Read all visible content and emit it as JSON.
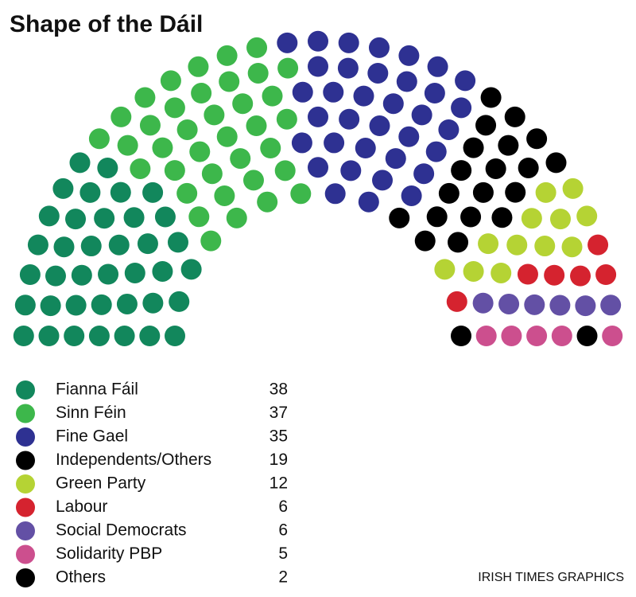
{
  "chart_data": {
    "type": "parliament",
    "title": "Shape of the Dáil",
    "series": [
      {
        "name": "Fianna Fáil",
        "color": "#12875c",
        "value": 38
      },
      {
        "name": "Sinn Féin",
        "color": "#3db74b",
        "value": 37
      },
      {
        "name": "Fine Gael",
        "color": "#2e3192",
        "value": 35
      },
      {
        "name": "Independents/Others",
        "color": "#000000",
        "value": 19
      },
      {
        "name": "Green Party",
        "color": "#b5d334",
        "value": 12
      },
      {
        "name": "Labour",
        "color": "#d5232f",
        "value": 6
      },
      {
        "name": "Social Democrats",
        "color": "#6350a5",
        "value": 6
      },
      {
        "name": "Solidarity PBP",
        "color": "#cc4f8e",
        "value": 5
      },
      {
        "name": "Others",
        "color": "#000000",
        "value": 2
      }
    ],
    "credit": "IRISH TIMES GRAPHICS"
  }
}
